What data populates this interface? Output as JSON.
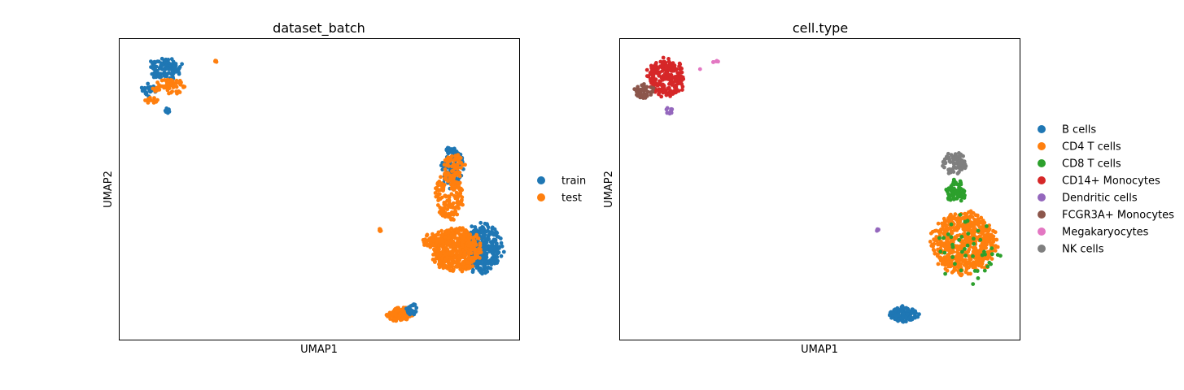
{
  "chart_data": [
    {
      "type": "scatter",
      "title": "dataset_batch",
      "xlabel": "UMAP1",
      "ylabel": "UMAP2",
      "xlim": [
        0,
        100
      ],
      "ylim": [
        0,
        100
      ],
      "grid": false,
      "ticks": false,
      "legend_position": "right",
      "series": [
        {
          "name": "train",
          "color": "#1f77b4"
        },
        {
          "name": "test",
          "color": "#ff7f0e"
        }
      ],
      "clusters": [
        {
          "series": "train",
          "x": 11.5,
          "y": 90.0,
          "rx": 4.0,
          "ry": 3.5,
          "n": 110
        },
        {
          "series": "train",
          "x": 7.0,
          "y": 83.0,
          "rx": 2.0,
          "ry": 2.0,
          "n": 25
        },
        {
          "series": "train",
          "x": 12.0,
          "y": 76.5,
          "rx": 0.8,
          "ry": 1.2,
          "n": 8
        },
        {
          "series": "test",
          "x": 12.5,
          "y": 84.0,
          "rx": 4.0,
          "ry": 2.5,
          "n": 60
        },
        {
          "series": "test",
          "x": 8.0,
          "y": 79.5,
          "rx": 2.0,
          "ry": 1.0,
          "n": 12
        },
        {
          "series": "test",
          "x": 24.0,
          "y": 92.5,
          "rx": 0.6,
          "ry": 0.4,
          "n": 4
        },
        {
          "series": "train",
          "x": 91.0,
          "y": 30.0,
          "rx": 4.5,
          "ry": 8.5,
          "n": 280
        },
        {
          "series": "train",
          "x": 83.5,
          "y": 57.0,
          "rx": 3.0,
          "ry": 7.0,
          "n": 90
        },
        {
          "series": "test",
          "x": 84.0,
          "y": 30.0,
          "rx": 6.0,
          "ry": 7.0,
          "n": 480
        },
        {
          "series": "test",
          "x": 82.5,
          "y": 48.0,
          "rx": 3.5,
          "ry": 8.0,
          "n": 160
        },
        {
          "series": "test",
          "x": 84.0,
          "y": 58.0,
          "rx": 2.5,
          "ry": 4.0,
          "n": 60
        },
        {
          "series": "test",
          "x": 78.0,
          "y": 33.0,
          "rx": 2.5,
          "ry": 2.0,
          "n": 45
        },
        {
          "series": "test",
          "x": 65.0,
          "y": 36.5,
          "rx": 0.5,
          "ry": 0.6,
          "n": 5
        },
        {
          "series": "test",
          "x": 70.0,
          "y": 8.5,
          "rx": 3.0,
          "ry": 2.3,
          "n": 110
        },
        {
          "series": "train",
          "x": 73.0,
          "y": 10.0,
          "rx": 1.5,
          "ry": 2.0,
          "n": 30
        }
      ]
    },
    {
      "type": "scatter",
      "title": "cell.type",
      "xlabel": "UMAP1",
      "ylabel": "UMAP2",
      "xlim": [
        0,
        100
      ],
      "ylim": [
        0,
        100
      ],
      "grid": false,
      "ticks": false,
      "legend_position": "right",
      "series": [
        {
          "name": "B cells",
          "color": "#1f77b4"
        },
        {
          "name": "CD4 T cells",
          "color": "#ff7f0e"
        },
        {
          "name": "CD8 T cells",
          "color": "#2ca02c"
        },
        {
          "name": "CD14+ Monocytes",
          "color": "#d62728"
        },
        {
          "name": "Dendritic cells",
          "color": "#9467bd"
        },
        {
          "name": "FCGR3A+ Monocytes",
          "color": "#8c564b"
        },
        {
          "name": "Megakaryocytes",
          "color": "#e377c2"
        },
        {
          "name": "NK cells",
          "color": "#7f7f7f"
        }
      ],
      "clusters": [
        {
          "series": "CD14+ Monocytes",
          "x": 11.5,
          "y": 87.0,
          "rx": 4.5,
          "ry": 6.0,
          "n": 230
        },
        {
          "series": "FCGR3A+ Monocytes",
          "x": 6.0,
          "y": 82.5,
          "rx": 2.5,
          "ry": 2.5,
          "n": 45
        },
        {
          "series": "Dendritic cells",
          "x": 12.5,
          "y": 76.0,
          "rx": 0.8,
          "ry": 1.5,
          "n": 10
        },
        {
          "series": "Megakaryocytes",
          "x": 24.0,
          "y": 92.5,
          "rx": 0.8,
          "ry": 0.4,
          "n": 5
        },
        {
          "series": "Megakaryocytes",
          "x": 20.0,
          "y": 90.0,
          "rx": 0.2,
          "ry": 0.2,
          "n": 1
        },
        {
          "series": "Dendritic cells",
          "x": 64.5,
          "y": 36.5,
          "rx": 0.5,
          "ry": 0.6,
          "n": 6
        },
        {
          "series": "NK cells",
          "x": 83.5,
          "y": 58.5,
          "rx": 3.0,
          "ry": 3.5,
          "n": 80
        },
        {
          "series": "CD8 T cells",
          "x": 84.0,
          "y": 49.5,
          "rx": 2.5,
          "ry": 3.5,
          "n": 70
        },
        {
          "series": "CD4 T cells",
          "x": 86.0,
          "y": 32.0,
          "rx": 8.0,
          "ry": 10.0,
          "n": 600
        },
        {
          "series": "CD8 T cells",
          "x": 87.0,
          "y": 30.0,
          "rx": 8.0,
          "ry": 11.0,
          "n": 45
        },
        {
          "series": "B cells",
          "x": 71.0,
          "y": 8.5,
          "rx": 3.5,
          "ry": 2.6,
          "n": 150
        }
      ]
    }
  ]
}
